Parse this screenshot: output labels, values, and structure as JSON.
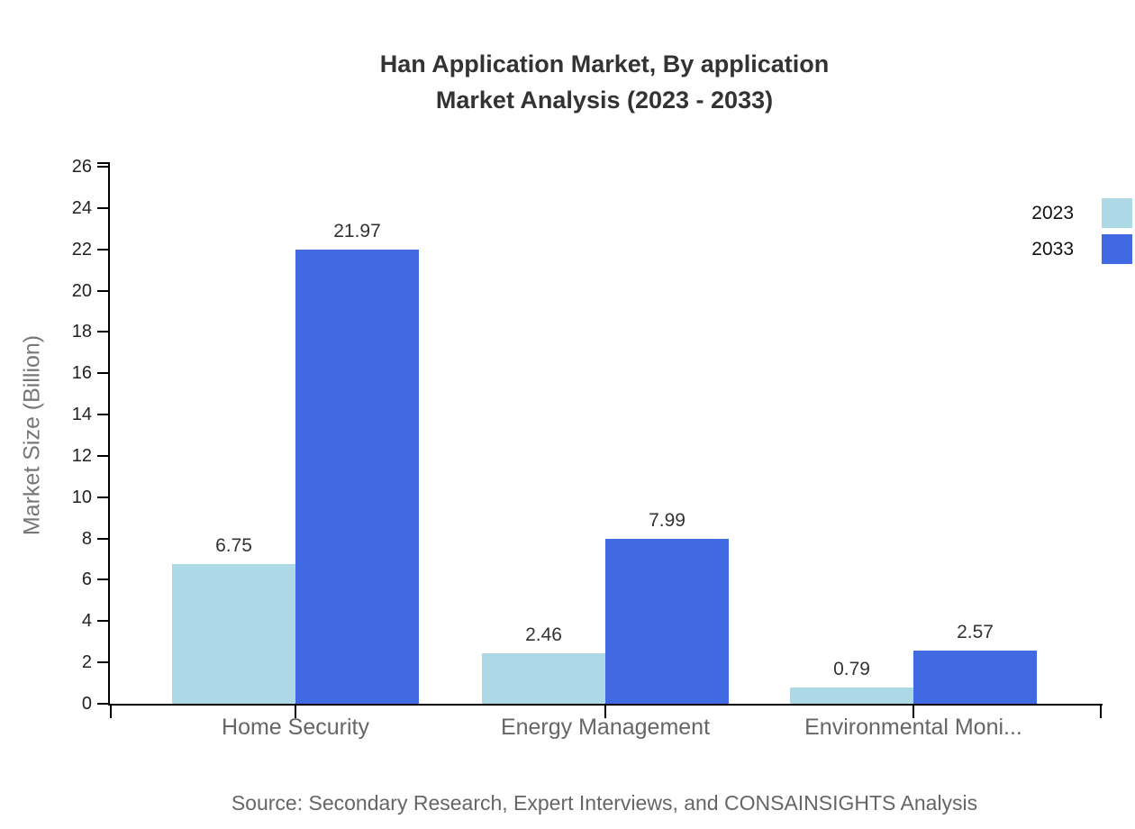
{
  "title": {
    "line1": "Han Application Market, By application",
    "line2": "Market Analysis (2023 - 2033)"
  },
  "chart_data": {
    "type": "bar",
    "title": "Han Application Market, By application Market Analysis (2023 - 2033)",
    "categories": [
      "Home Security",
      "Energy Management",
      "Environmental Moni..."
    ],
    "series": [
      {
        "name": "2023",
        "color": "#ADD8E6",
        "values": [
          6.75,
          2.46,
          0.79
        ],
        "value_labels": [
          "6.75",
          "2.46",
          "0.79"
        ]
      },
      {
        "name": "2033",
        "color": "#4169E1",
        "values": [
          21.97,
          7.99,
          2.57
        ],
        "value_labels": [
          "21.97",
          "7.99",
          "2.57"
        ]
      }
    ],
    "xlabel": "",
    "ylabel": "Market Size (Billion)",
    "ylim": [
      0,
      26
    ],
    "yticks": [
      0,
      2,
      4,
      6,
      8,
      10,
      12,
      14,
      16,
      18,
      20,
      22,
      24,
      26
    ],
    "grid": false,
    "legend_position": "top-right"
  },
  "source": "Source: Secondary Research, Expert Interviews, and CONSAINSIGHTS Analysis",
  "colors": {
    "bar_2023": "#ADD8E6",
    "bar_2033": "#4169E1",
    "axis": "#000000",
    "title_text": "#333333",
    "category_text": "#666666",
    "value_text": "#333333",
    "tick_text": "#222222",
    "ylabel_text": "#777777",
    "source_text": "#666666",
    "background": "#ffffff"
  }
}
